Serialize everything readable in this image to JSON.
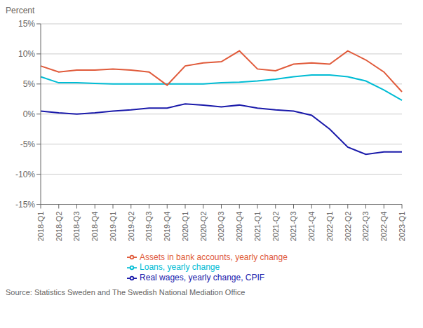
{
  "chart_data": {
    "type": "line",
    "y_label": "Percent",
    "annotations": [
      "Source: Statistics Sweden and The Swedish National Mediation Office"
    ],
    "categories": [
      "2018-Q1",
      "2018-Q2",
      "2018-Q3",
      "2018-Q4",
      "2019-Q1",
      "2019-Q2",
      "2019-Q3",
      "2019-Q4",
      "2020-Q1",
      "2020-Q2",
      "2020-Q3",
      "2020-Q4",
      "2021-Q1",
      "2021-Q2",
      "2021-Q3",
      "2021-Q4",
      "2022-Q1",
      "2022-Q2",
      "2022-Q3",
      "2022-Q4",
      "2023-Q1"
    ],
    "series": [
      {
        "name": "Real wages, yearly change, CPIF",
        "color": "#1a1aaa",
        "values": [
          0.5,
          0.2,
          0.0,
          0.2,
          0.5,
          0.7,
          1.0,
          1.0,
          1.7,
          1.5,
          1.2,
          1.5,
          1.0,
          0.7,
          0.5,
          -0.2,
          -2.5,
          -5.5,
          -6.7,
          -6.3,
          -6.3
        ]
      },
      {
        "name": "Loans, yearly change",
        "color": "#00bcd4",
        "values": [
          6.2,
          5.2,
          5.2,
          5.1,
          5.0,
          5.0,
          5.0,
          5.0,
          5.0,
          5.0,
          5.2,
          5.3,
          5.5,
          5.8,
          6.2,
          6.5,
          6.5,
          6.2,
          5.5,
          4.0,
          2.3
        ]
      },
      {
        "name": "Assets in bank accounts, yearly change",
        "color": "#e05a3a",
        "values": [
          8.0,
          7.0,
          7.3,
          7.3,
          7.5,
          7.3,
          7.0,
          4.8,
          8.0,
          8.5,
          8.7,
          10.5,
          7.5,
          7.2,
          8.3,
          8.5,
          8.3,
          10.5,
          9.0,
          7.0,
          3.7
        ]
      }
    ],
    "ylim": [
      -15,
      15
    ],
    "yticks": [
      {
        "value": -15,
        "label": "-15%"
      },
      {
        "value": -10,
        "label": "-10%"
      },
      {
        "value": -5,
        "label": "-5%"
      },
      {
        "value": 0,
        "label": "0%"
      },
      {
        "value": 5,
        "label": "5%"
      },
      {
        "value": 10,
        "label": "10%"
      },
      {
        "value": 15,
        "label": "15%"
      }
    ],
    "grid": true,
    "legend": "bottom"
  }
}
